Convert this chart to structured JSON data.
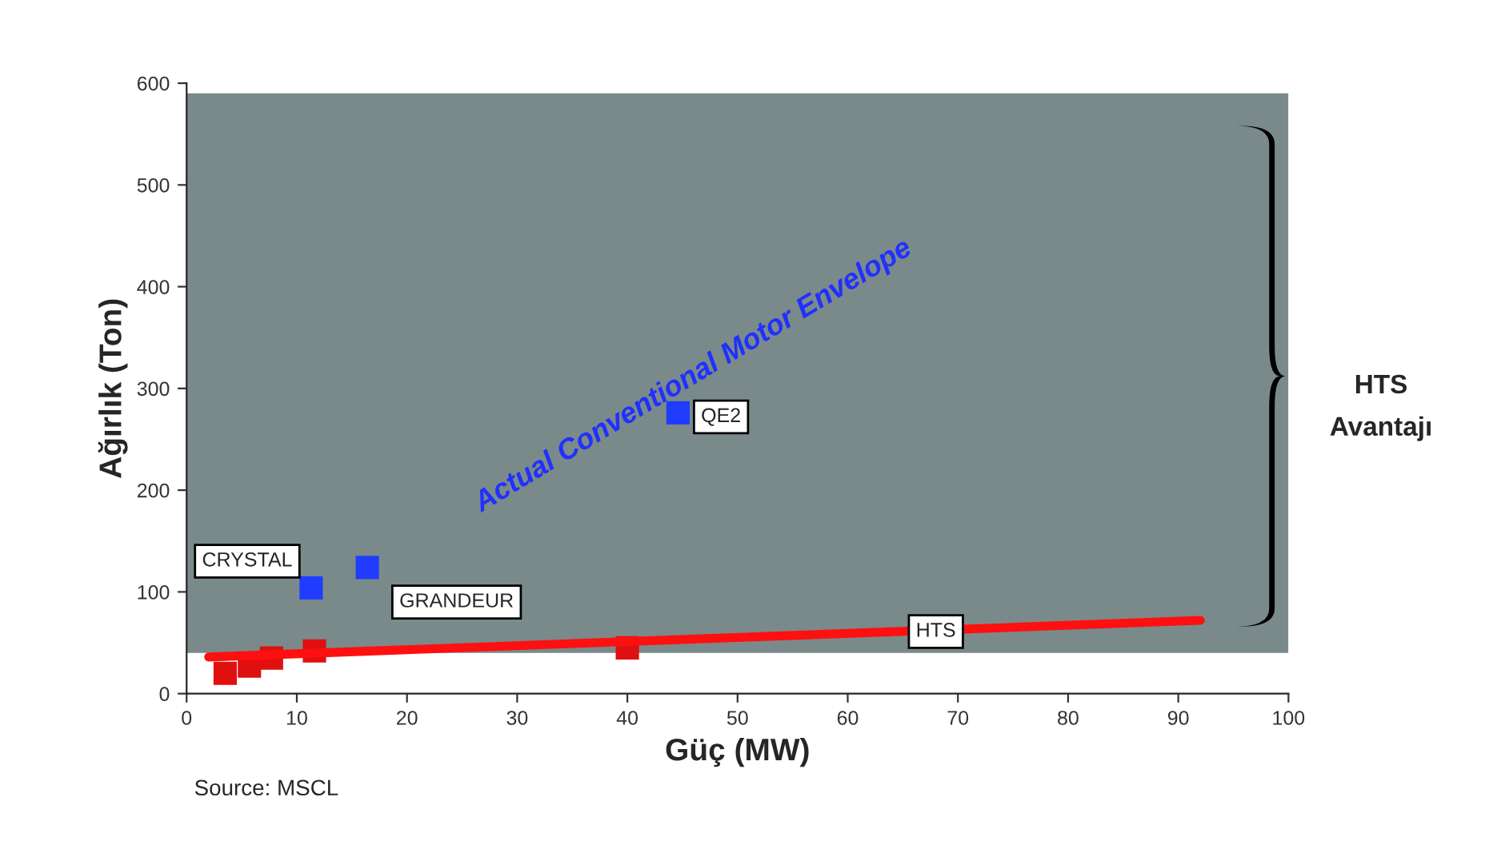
{
  "chart_data": {
    "type": "scatter",
    "xlabel": "Güç (MW)",
    "ylabel": "Ağırlık (Ton)",
    "xlim": [
      0,
      100
    ],
    "xticks": [
      0,
      10,
      20,
      30,
      40,
      50,
      60,
      70,
      80,
      90,
      100
    ],
    "ylim": [
      0,
      600
    ],
    "yticks": [
      0,
      100,
      200,
      300,
      400,
      500,
      600
    ],
    "grid": false,
    "legend": false,
    "bands": [
      {
        "axis": "y",
        "from": 40,
        "to": 590,
        "color": "#7a8a8a"
      }
    ],
    "series": [
      {
        "color": "#1f3cff",
        "marker": "square",
        "x": [
          11.3,
          16.4,
          44.6
        ],
        "values": [
          104,
          124,
          276
        ]
      },
      {
        "color": "#e01010",
        "marker": "square",
        "x": [
          3.5,
          5.7,
          7.7,
          11.6,
          40
        ],
        "values": [
          20,
          27,
          35,
          42,
          45
        ]
      },
      {
        "type": "line",
        "color": "#ff1010",
        "marker": "none",
        "x": [
          2,
          92
        ],
        "values": [
          36,
          72
        ]
      }
    ],
    "annotations": [
      "CRYSTAL",
      "GRANDEUR",
      {
        "text": "QE2",
        "x": 48.5,
        "y": 272
      },
      {
        "text": "HTS",
        "x": 68,
        "y": 61
      },
      "Actual Conventional Motor Envelope",
      "HTS\nAvantajı",
      "Source: MSCL"
    ]
  }
}
